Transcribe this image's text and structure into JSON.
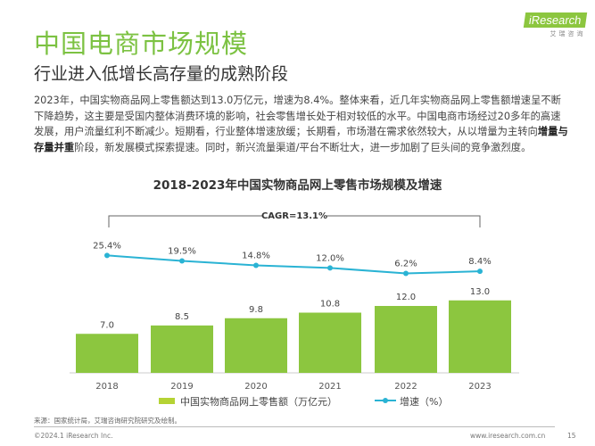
{
  "title": "中国电商市场规模",
  "subtitle": "行业进入低增长高存量的成熟阶段",
  "paragraph": {
    "before": "2023年，中国实物商品网上零售额达到13.0万亿元，增速为8.4%。整体来看，近几年实物商品网上零售额增速呈不断下降趋势，这主要是受国内整体消费环境的影响，社会零售增长处于相对较低的水平。中国电商市场经过20多年的高速发展，用户流量红利不断减少。短期看，行业整体增速放缓；长期看，市场潜在需求依然较大，从以增量为主转向",
    "bold": "增量与存量并重",
    "after": "阶段，新发展模式探索提速。同时，新兴流量渠道/平台不断壮大，进一步加剧了巨头间的竞争激烈度。"
  },
  "logo": {
    "text": "iResearch",
    "sub": "艾瑞咨询"
  },
  "chart_data": {
    "type": "bar+line",
    "title": "2018-2023年中国实物商品网上零售市场规模及增速",
    "annotation": "CAGR=13.1%",
    "categories": [
      "2018",
      "2019",
      "2020",
      "2021",
      "2022",
      "2023"
    ],
    "series": [
      {
        "name": "中国实物商品网上零售额（万亿元）",
        "type": "bar",
        "values": [
          7.0,
          8.5,
          9.8,
          10.8,
          12.0,
          13.0
        ],
        "labels": [
          "7.0",
          "8.5",
          "9.8",
          "10.8",
          "12.0",
          "13.0"
        ],
        "color": "#8cc63f"
      },
      {
        "name": "增速（%）",
        "type": "line",
        "values": [
          25.4,
          19.5,
          14.8,
          12.0,
          6.2,
          8.4
        ],
        "labels": [
          "25.4%",
          "19.5%",
          "14.8%",
          "12.0%",
          "6.2%",
          "8.4%"
        ],
        "color": "#2ab3d4"
      }
    ]
  },
  "footer": {
    "source": "来源：国家统计局，艾瑞咨询研究院研究及绘制。",
    "copyright": "©2024.1 iResearch Inc.",
    "site": "www.iresearch.com.cn",
    "page": "15"
  }
}
